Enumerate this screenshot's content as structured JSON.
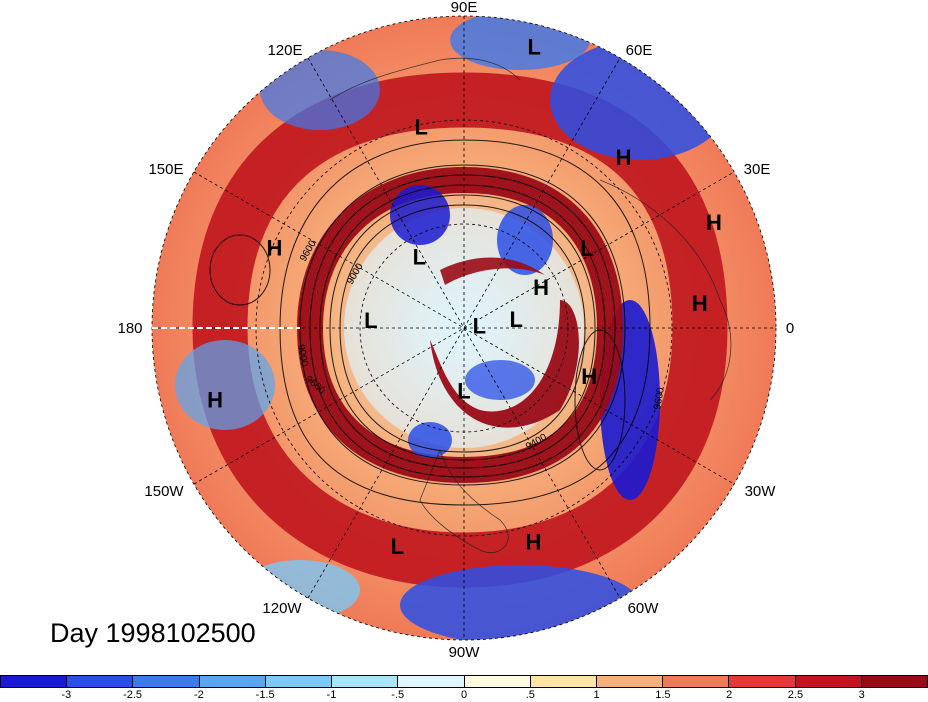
{
  "map": {
    "longitude_labels": [
      {
        "text": "90E",
        "angle": 90
      },
      {
        "text": "60E",
        "angle": 60
      },
      {
        "text": "30E",
        "angle": 30
      },
      {
        "text": "0",
        "angle": 0
      },
      {
        "text": "30W",
        "angle": -30
      },
      {
        "text": "60W",
        "angle": -60
      },
      {
        "text": "90W",
        "angle": -90
      },
      {
        "text": "120W",
        "angle": -120
      },
      {
        "text": "150W",
        "angle": -150
      },
      {
        "text": "180",
        "angle": 180
      },
      {
        "text": "150E",
        "angle": 150
      },
      {
        "text": "120E",
        "angle": 120
      }
    ],
    "pressure_centers": [
      {
        "type": "L",
        "lon_angle": 76,
        "radius_frac": 0.93
      },
      {
        "type": "L",
        "lon_angle": 102,
        "radius_frac": 0.66
      },
      {
        "type": "H",
        "lon_angle": 47,
        "radius_frac": 0.75
      },
      {
        "type": "H",
        "lon_angle": 157,
        "radius_frac": 0.66
      },
      {
        "type": "H",
        "lon_angle": 23,
        "radius_frac": 0.87
      },
      {
        "type": "H",
        "lon_angle": 28,
        "radius_frac": 0.28
      },
      {
        "type": "L",
        "lon_angle": 122,
        "radius_frac": 0.27
      },
      {
        "type": "L",
        "lon_angle": 33,
        "radius_frac": 0.47
      },
      {
        "type": "H",
        "lon_angle": 6,
        "radius_frac": 0.76
      },
      {
        "type": "L",
        "lon_angle": 175,
        "radius_frac": 0.3
      },
      {
        "type": "L",
        "lon_angle": 10,
        "radius_frac": 0.05
      },
      {
        "type": "L",
        "lon_angle": 10,
        "radius_frac": 0.17
      },
      {
        "type": "H",
        "lon_angle": -164,
        "radius_frac": 0.83
      },
      {
        "type": "L",
        "lon_angle": -90,
        "radius_frac": 0.2
      },
      {
        "type": "H",
        "lon_angle": -21,
        "radius_frac": 0.43
      },
      {
        "type": "L",
        "lon_angle": -107,
        "radius_frac": 0.73
      },
      {
        "type": "H",
        "lon_angle": -72,
        "radius_frac": 0.72
      }
    ],
    "contour_labels": [
      "9600",
      "9000",
      "9000",
      "9600",
      "9400",
      "9600"
    ]
  },
  "date_label": "Day 1998102500",
  "colorbar": {
    "ticks": [
      "-3",
      "-2.5",
      "-2",
      "-1.5",
      "-1",
      "-.5",
      "0",
      ".5",
      "1",
      "1.5",
      "2",
      "2.5",
      "3"
    ],
    "colors": [
      "#1a1ad0",
      "#2a4fe6",
      "#3b7bee",
      "#58a6f2",
      "#7cc8f6",
      "#a8e4fa",
      "#dff6ff",
      "#fffbe0",
      "#ffe4a6",
      "#f6b07a",
      "#f07a58",
      "#e2393a",
      "#c0151e",
      "#9a0b17"
    ]
  }
}
